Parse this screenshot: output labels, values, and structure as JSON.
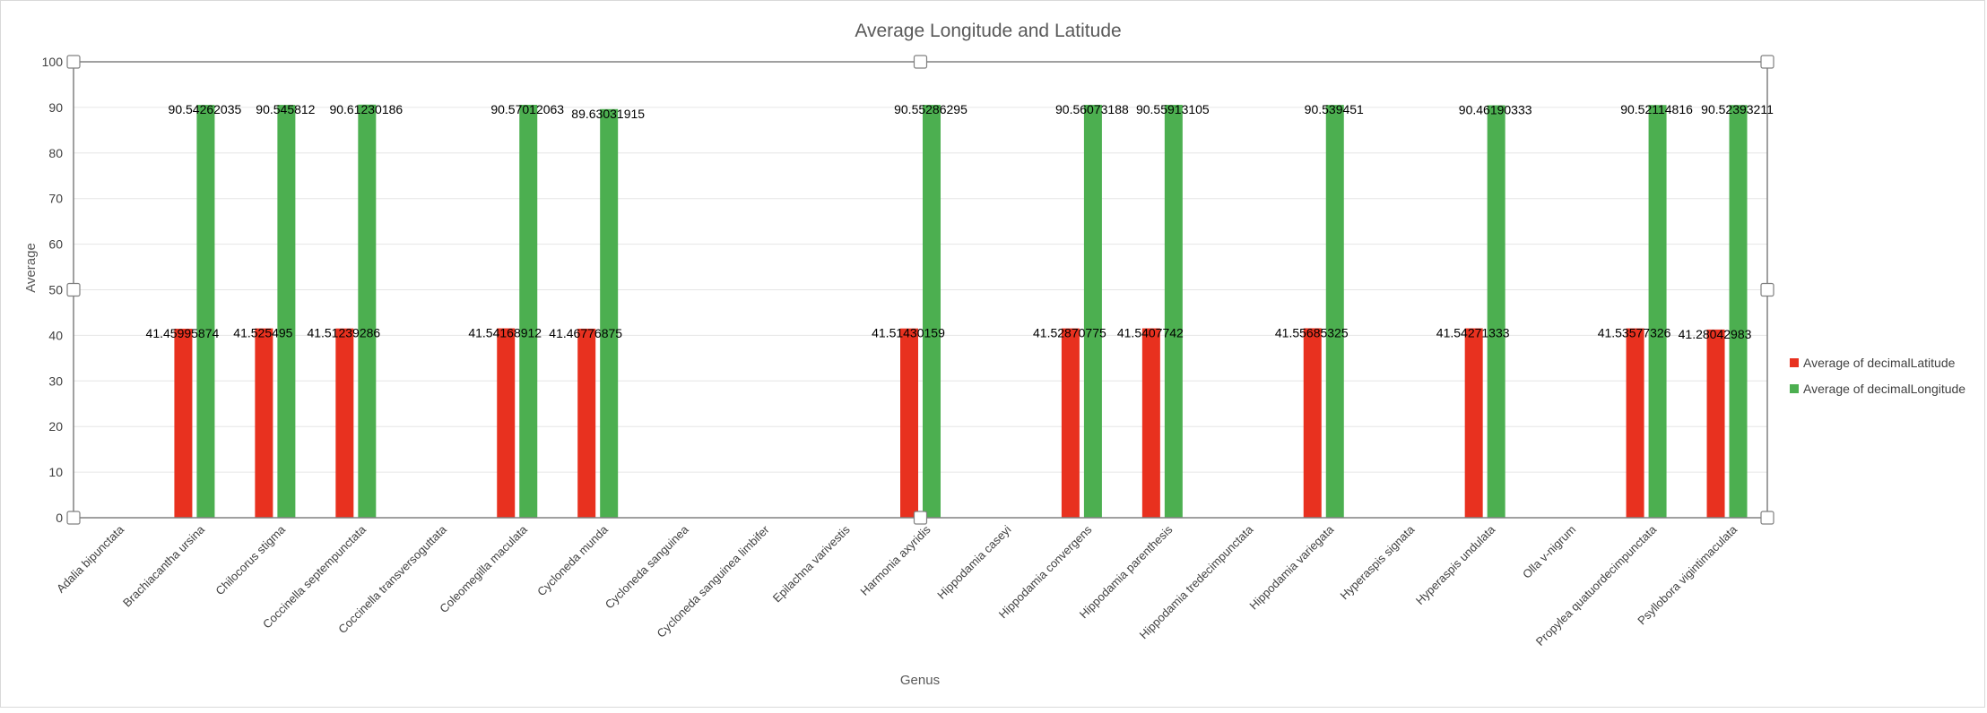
{
  "chart_data": {
    "type": "bar",
    "title": "Average Longitude and Latitude",
    "xlabel": "Genus",
    "ylabel": "Average",
    "ylim": [
      0,
      100
    ],
    "yticks": [
      0,
      10,
      20,
      30,
      40,
      50,
      60,
      70,
      80,
      90,
      100
    ],
    "grid": true,
    "legend_position": "right",
    "categories": [
      "Adalia bipunctata",
      "Brachiacantha ursina",
      "Chilocorus stigma",
      "Coccinella septempunctata",
      "Coccinella transversoguttata",
      "Coleomegilla maculata",
      "Cycloneda munda",
      "Cycloneda sanguinea",
      "Cycloneda sanguinea limbifer",
      "Epilachna varivestis",
      "Harmonia axyridis",
      "Hippodamia caseyi",
      "Hippodamia convergens",
      "Hippodamia parenthesis",
      "Hippodamia tredecimpunctata",
      "Hippodamia variegata",
      "Hyperaspis signata",
      "Hyperaspis undulata",
      "Olla v-nigrum",
      "Propylea quatuordecimpunctata",
      "Psyllobora vigintimaculata"
    ],
    "series": [
      {
        "name": "Average of decimalLatitude",
        "color": "#e8311f",
        "values": [
          null,
          41.45995874,
          41.525495,
          41.51239286,
          null,
          41.54168912,
          41.46776875,
          null,
          null,
          null,
          41.51430159,
          null,
          41.52870775,
          41.5407742,
          null,
          41.55685325,
          null,
          41.54271333,
          null,
          41.53577326,
          41.28042983
        ],
        "labels": [
          "",
          "41.45995874",
          "41.525495",
          "41.51239286",
          "",
          "41.54168912",
          "41.46776875",
          "",
          "",
          "",
          "41.51430159",
          "",
          "41.52870775",
          "41.5407742",
          "",
          "41.55685325",
          "",
          "41.54271333",
          "",
          "41.53577326",
          "41.28042983"
        ]
      },
      {
        "name": "Average of decimalLongitude",
        "color": "#4caf50",
        "values": [
          null,
          90.54262035,
          90.545812,
          90.61230186,
          null,
          90.57012063,
          89.63031915,
          null,
          null,
          null,
          90.55286295,
          null,
          90.56073188,
          90.55913105,
          null,
          90.539451,
          null,
          90.46190333,
          null,
          90.52114816,
          90.52393211
        ],
        "labels": [
          "",
          "90.54262035",
          "90.545812",
          "90.61230186",
          "",
          "90.57012063",
          "89.63031915",
          "",
          "",
          "",
          "90.55286295",
          "",
          "90.56073188",
          "90.55913105",
          "",
          "90.539451",
          "",
          "90.46190333",
          "",
          "90.52114816",
          "90.52393211"
        ]
      }
    ]
  }
}
